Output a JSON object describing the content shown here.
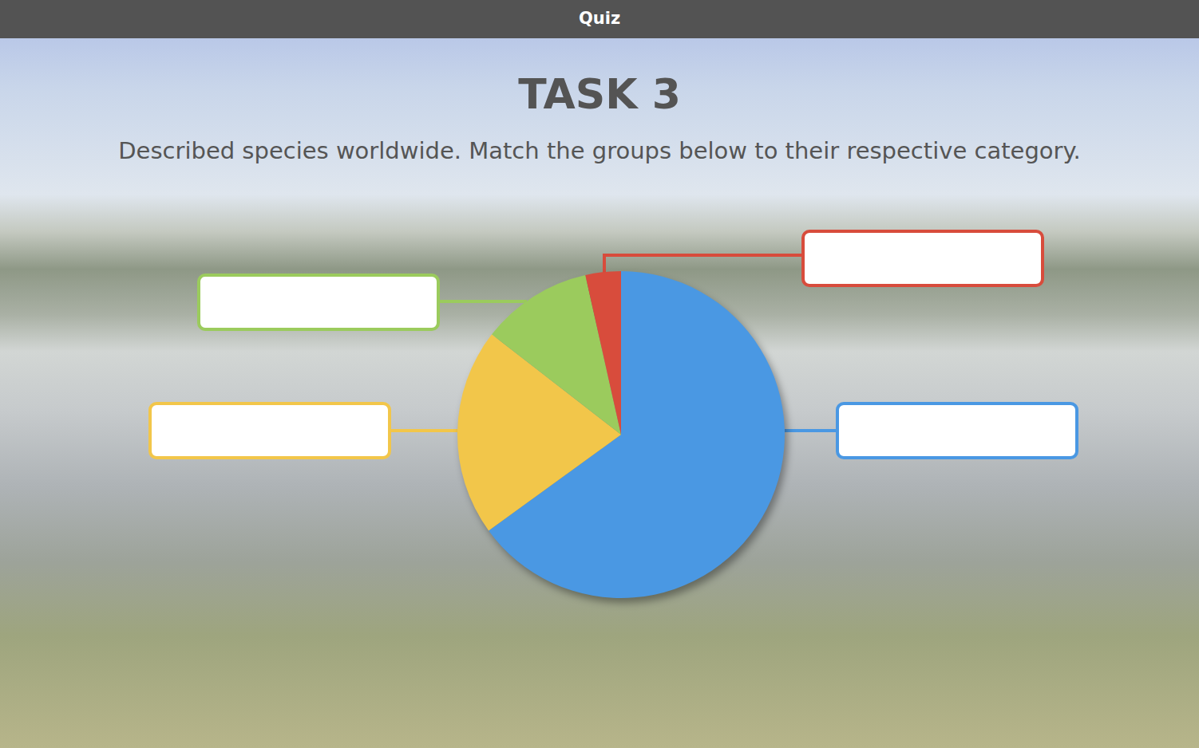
{
  "header": "Quiz",
  "chart_data": {
    "type": "pie",
    "title": "TASK 3",
    "subtitle": "Described species worldwide. Match the groups below to their respective category.",
    "values": [
      65,
      20.5,
      11,
      3.5
    ],
    "colors": [
      "#4a98e3",
      "#f2c64a",
      "#9bcb5d",
      "#d84c3c"
    ],
    "data_labels": false
  }
}
